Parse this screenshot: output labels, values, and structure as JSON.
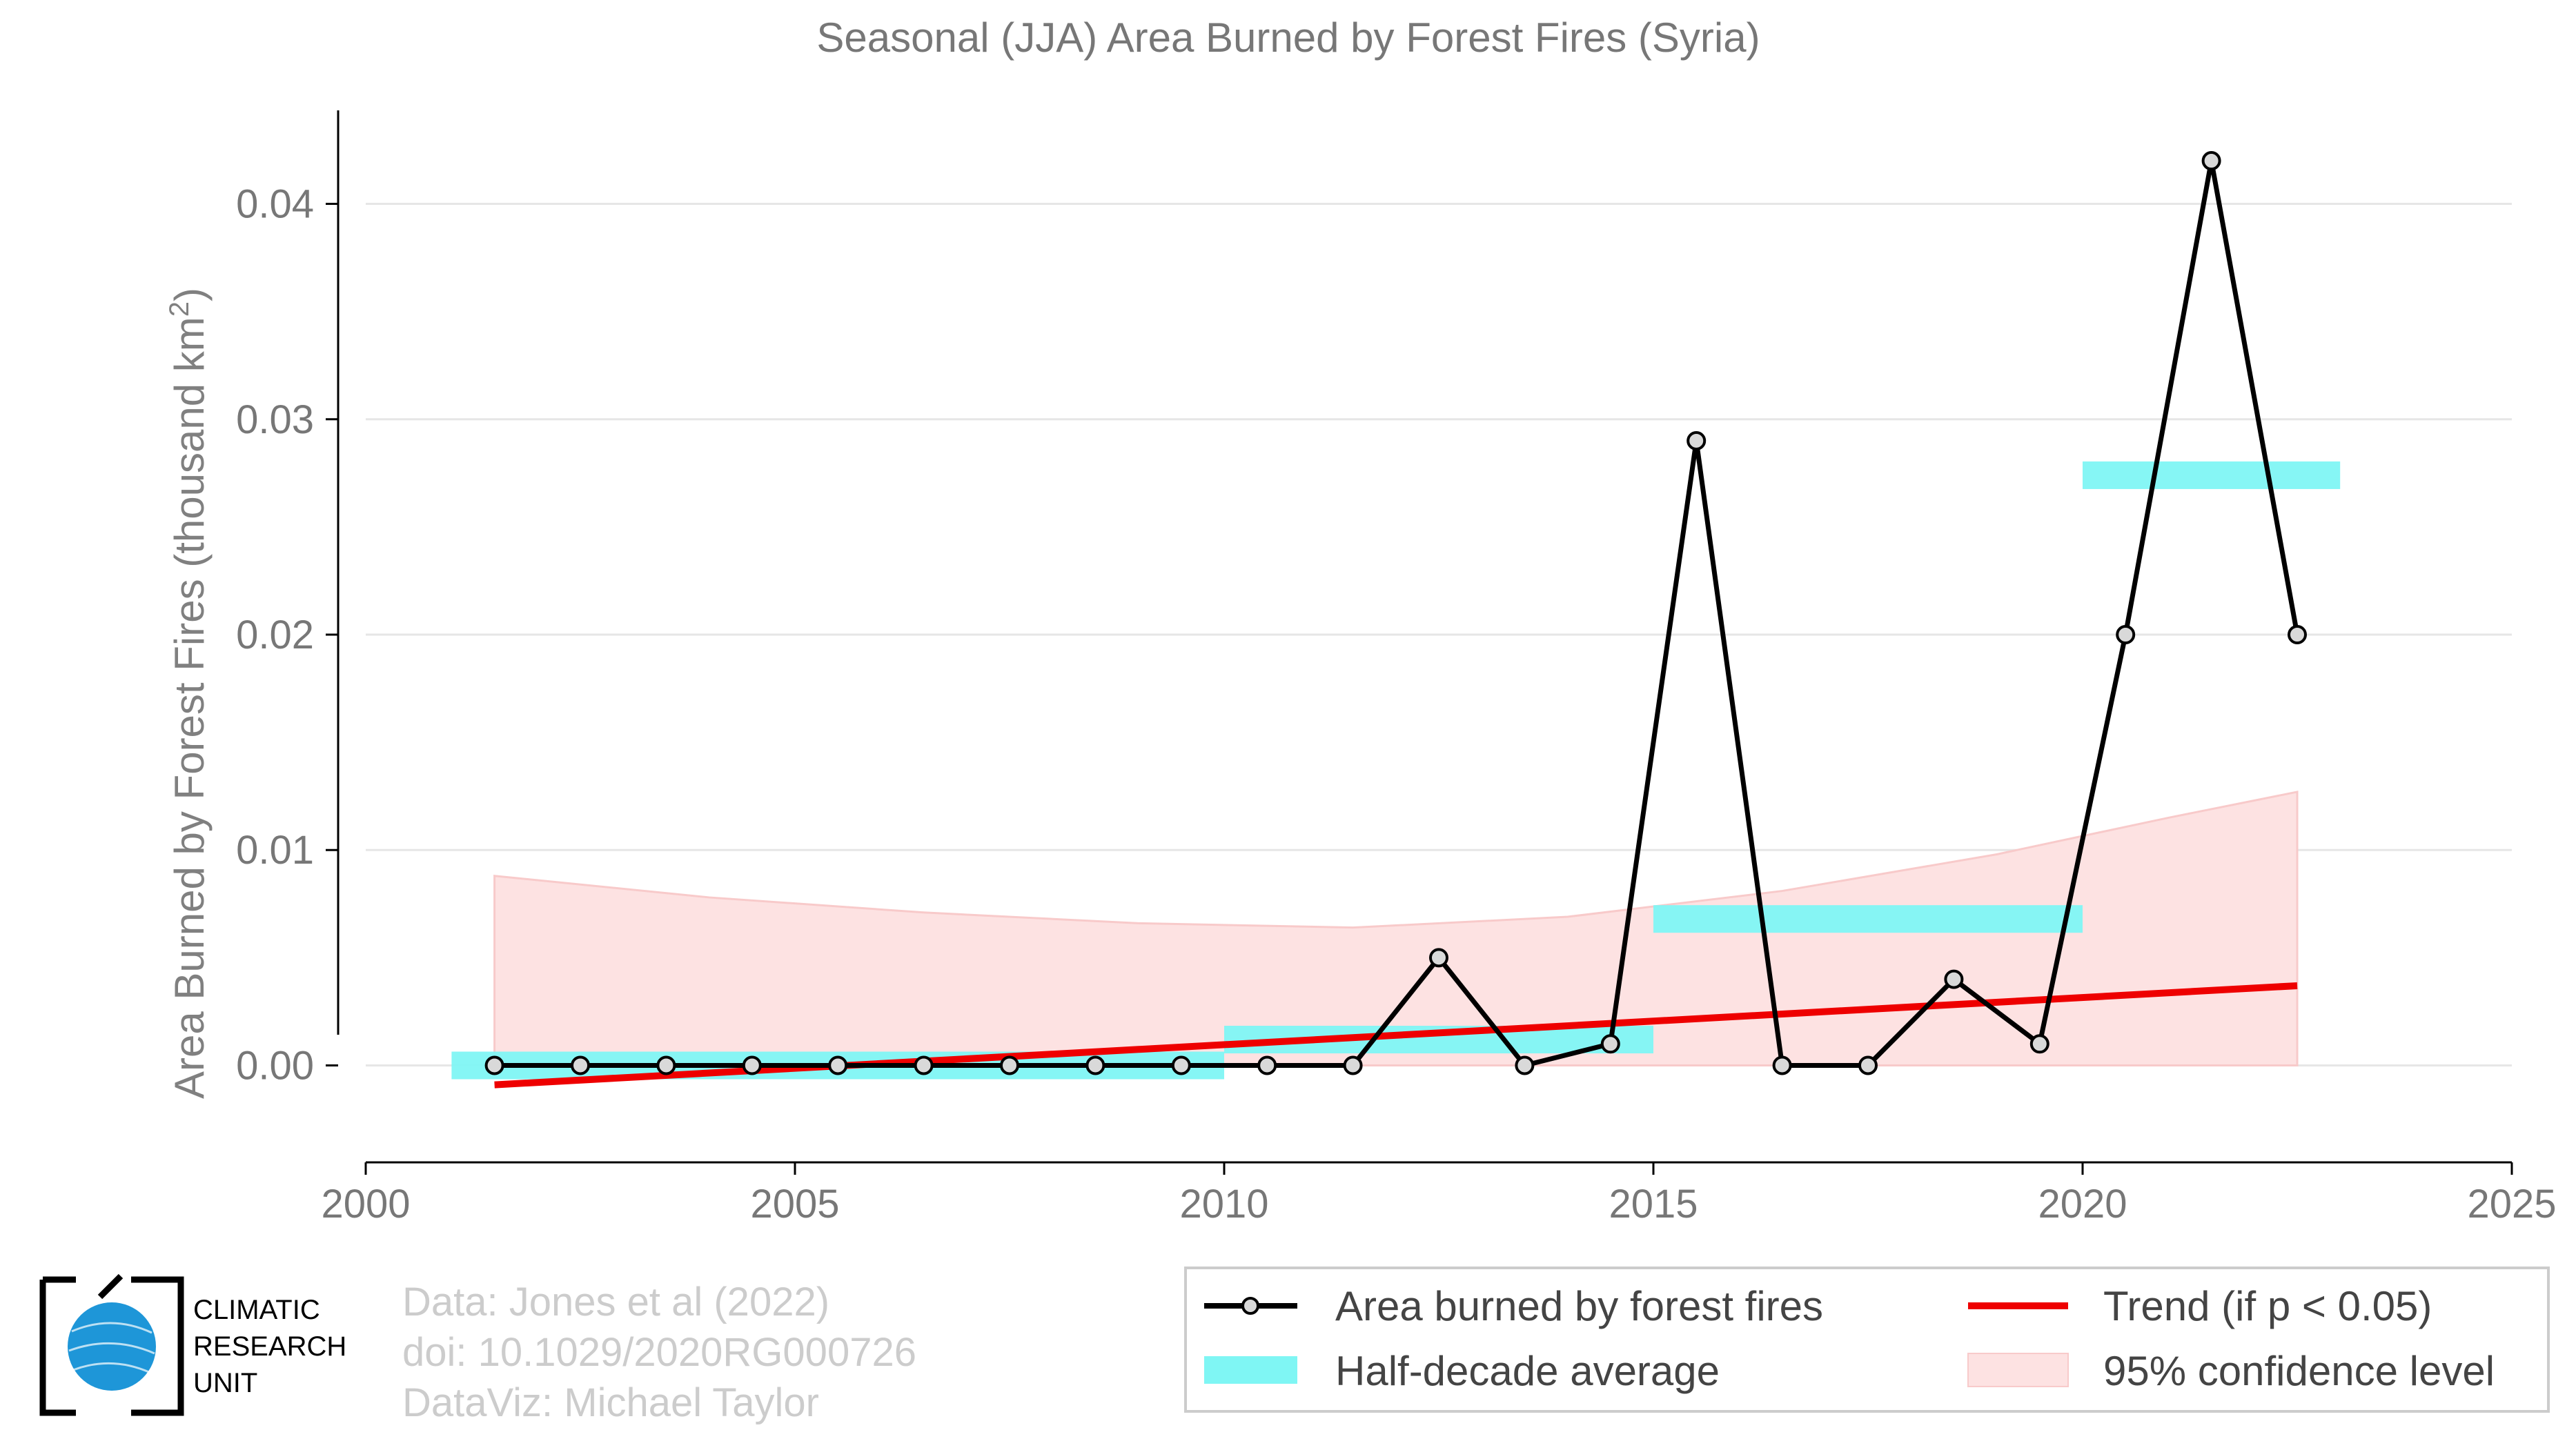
{
  "chart_data": {
    "type": "line",
    "title": "Seasonal (JJA) Area Burned by Forest Fires (Syria)",
    "ylabel_main": "Area Burned by Forest Fires (thousand km",
    "ylabel_sup": "2",
    "ylabel_close": ")",
    "xlim": [
      2000,
      2025
    ],
    "ylim": [
      -0.0045,
      0.0445
    ],
    "x_ticks": [
      2000,
      2005,
      2010,
      2015,
      2020,
      2025
    ],
    "y_ticks": [
      0.0,
      0.01,
      0.02,
      0.03,
      0.04
    ],
    "y_tick_labels": [
      "0.00",
      "0.01",
      "0.02",
      "0.03",
      "0.04"
    ],
    "grid": "horizontal",
    "series": [
      {
        "name": "Area burned by forest fires",
        "color": "#000000",
        "x": [
          2001.5,
          2002.5,
          2003.5,
          2004.5,
          2005.5,
          2006.5,
          2007.5,
          2008.5,
          2009.5,
          2010.5,
          2011.5,
          2012.5,
          2013.5,
          2014.5,
          2015.5,
          2016.5,
          2017.5,
          2018.5,
          2019.5,
          2020.5,
          2021.5,
          2022.5
        ],
        "y": [
          0,
          0,
          0,
          0,
          0,
          0,
          0,
          0,
          0,
          0,
          0,
          0.005,
          0,
          0.001,
          0.029,
          0,
          0,
          0.004,
          0.001,
          0.02,
          0.042,
          0.02
        ]
      }
    ],
    "half_decade_average": {
      "name": "Half-decade average",
      "color": "#7ff6f4",
      "segments": [
        {
          "x_start": 2001.0,
          "x_end": 2010.0,
          "y": 0.0
        },
        {
          "x_start": 2010.0,
          "x_end": 2015.0,
          "y": 0.0012
        },
        {
          "x_start": 2015.0,
          "x_end": 2020.0,
          "y": 0.0068
        },
        {
          "x_start": 2020.0,
          "x_end": 2023.0,
          "y": 0.0274
        }
      ]
    },
    "trend": {
      "name": "Trend (if p < 0.05)",
      "color": "#ee0000",
      "x": [
        2001.5,
        2022.5
      ],
      "y": [
        -0.0009,
        0.0037
      ]
    },
    "confidence": {
      "name": "95% confidence level",
      "color": "#fde2e2",
      "x": [
        2001.5,
        2004,
        2006.5,
        2009,
        2011.5,
        2014,
        2016.5,
        2019,
        2021,
        2022.5
      ],
      "upper": [
        0.0088,
        0.0078,
        0.0071,
        0.0066,
        0.0064,
        0.0069,
        0.0081,
        0.0098,
        0.0115,
        0.0127
      ],
      "lower": [
        0,
        0,
        0,
        0,
        0,
        0,
        0,
        0,
        0,
        0
      ]
    },
    "legend_position": "bottom-right"
  },
  "credits": {
    "line1": "Data: Jones et al (2022)",
    "line2": "doi: 10.1029/2020RG000726",
    "line3": "DataViz: Michael Taylor"
  },
  "logo": {
    "line1": "CLIMATIC",
    "line2": "RESEARCH",
    "line3": "UNIT",
    "globe_color": "#1e96d8"
  }
}
